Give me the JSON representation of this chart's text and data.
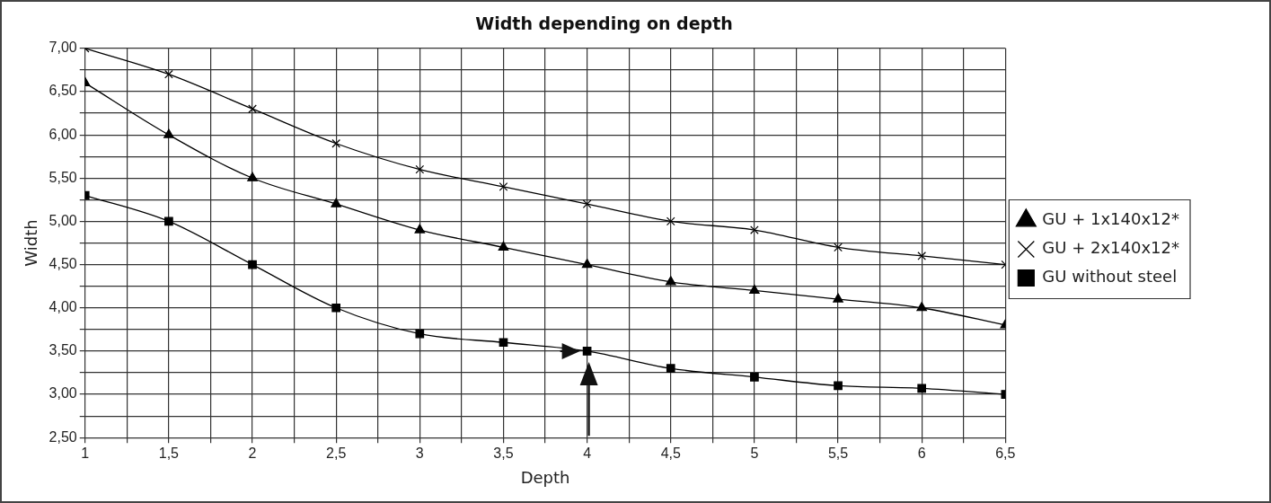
{
  "chart_data": {
    "type": "line",
    "title": "Width depending on depth",
    "xlabel": "Depth",
    "ylabel": "Width",
    "x": [
      1,
      1.5,
      2,
      2.5,
      3,
      3.5,
      4,
      4.5,
      5,
      5.5,
      6,
      6.5
    ],
    "series": [
      {
        "name": "GU + 1x140x12*",
        "color": "#000000",
        "marker": "triangle",
        "values": [
          6.6,
          6.0,
          5.5,
          5.2,
          4.9,
          4.7,
          4.5,
          4.3,
          4.2,
          4.1,
          4.0,
          3.8
        ]
      },
      {
        "name": "GU + 2x140x12*",
        "color": "#000000",
        "marker": "cross",
        "values": [
          7.0,
          6.7,
          6.3,
          5.9,
          5.6,
          5.4,
          5.2,
          5.0,
          4.9,
          4.7,
          4.6,
          4.5
        ]
      },
      {
        "name": "GU without steel",
        "color": "#000000",
        "marker": "square",
        "values": [
          5.3,
          5.0,
          4.5,
          4.0,
          3.7,
          3.6,
          3.5,
          3.3,
          3.2,
          3.1,
          3.07,
          3.0
        ]
      }
    ],
    "xlim": [
      1,
      6.5
    ],
    "xticks": [
      1,
      {
        "value": 1.25,
        "label": null
      },
      {
        "value": 1.5,
        "label": "1,5"
      },
      {
        "value": 1.75,
        "label": null
      },
      2,
      {
        "value": 2.25,
        "label": null
      },
      {
        "value": 2.5,
        "label": "2,5"
      },
      {
        "value": 2.75,
        "label": null
      },
      3,
      {
        "value": 3.25,
        "label": null
      },
      {
        "value": 3.5,
        "label": "3,5"
      },
      {
        "value": 3.75,
        "label": null
      },
      4,
      {
        "value": 4.25,
        "label": null
      },
      {
        "value": 4.5,
        "label": "4,5"
      },
      {
        "value": 4.75,
        "label": null
      },
      5,
      {
        "value": 5.25,
        "label": null
      },
      {
        "value": 5.5,
        "label": "5,5"
      },
      {
        "value": 5.75,
        "label": null
      },
      6,
      {
        "value": 6.25,
        "label": null
      },
      {
        "value": 6.5,
        "label": "6,5"
      }
    ],
    "ylim": [
      2.5,
      7
    ],
    "yticks": [
      {
        "value": 2.5,
        "label": "2,50"
      },
      {
        "value": 2.75,
        "label": null
      },
      {
        "value": 3,
        "label": "3,00"
      },
      {
        "value": 3.25,
        "label": null
      },
      {
        "value": 3.5,
        "label": "3,50"
      },
      {
        "value": 3.75,
        "label": null
      },
      {
        "value": 4,
        "label": "4,00"
      },
      {
        "value": 4.25,
        "label": null
      },
      {
        "value": 4.5,
        "label": "4,50"
      },
      {
        "value": 4.75,
        "label": null
      },
      {
        "value": 5,
        "label": "5,00"
      },
      {
        "value": 5.25,
        "label": null
      },
      {
        "value": 5.5,
        "label": "5,50"
      },
      {
        "value": 5.75,
        "label": null
      },
      {
        "value": 6,
        "label": "6,00"
      },
      {
        "value": 6.25,
        "label": null
      },
      {
        "value": 6.5,
        "label": "6,50"
      },
      {
        "value": 6.75,
        "label": null
      },
      {
        "value": 7,
        "label": "7,00"
      }
    ],
    "grid": true,
    "legend": "right"
  }
}
